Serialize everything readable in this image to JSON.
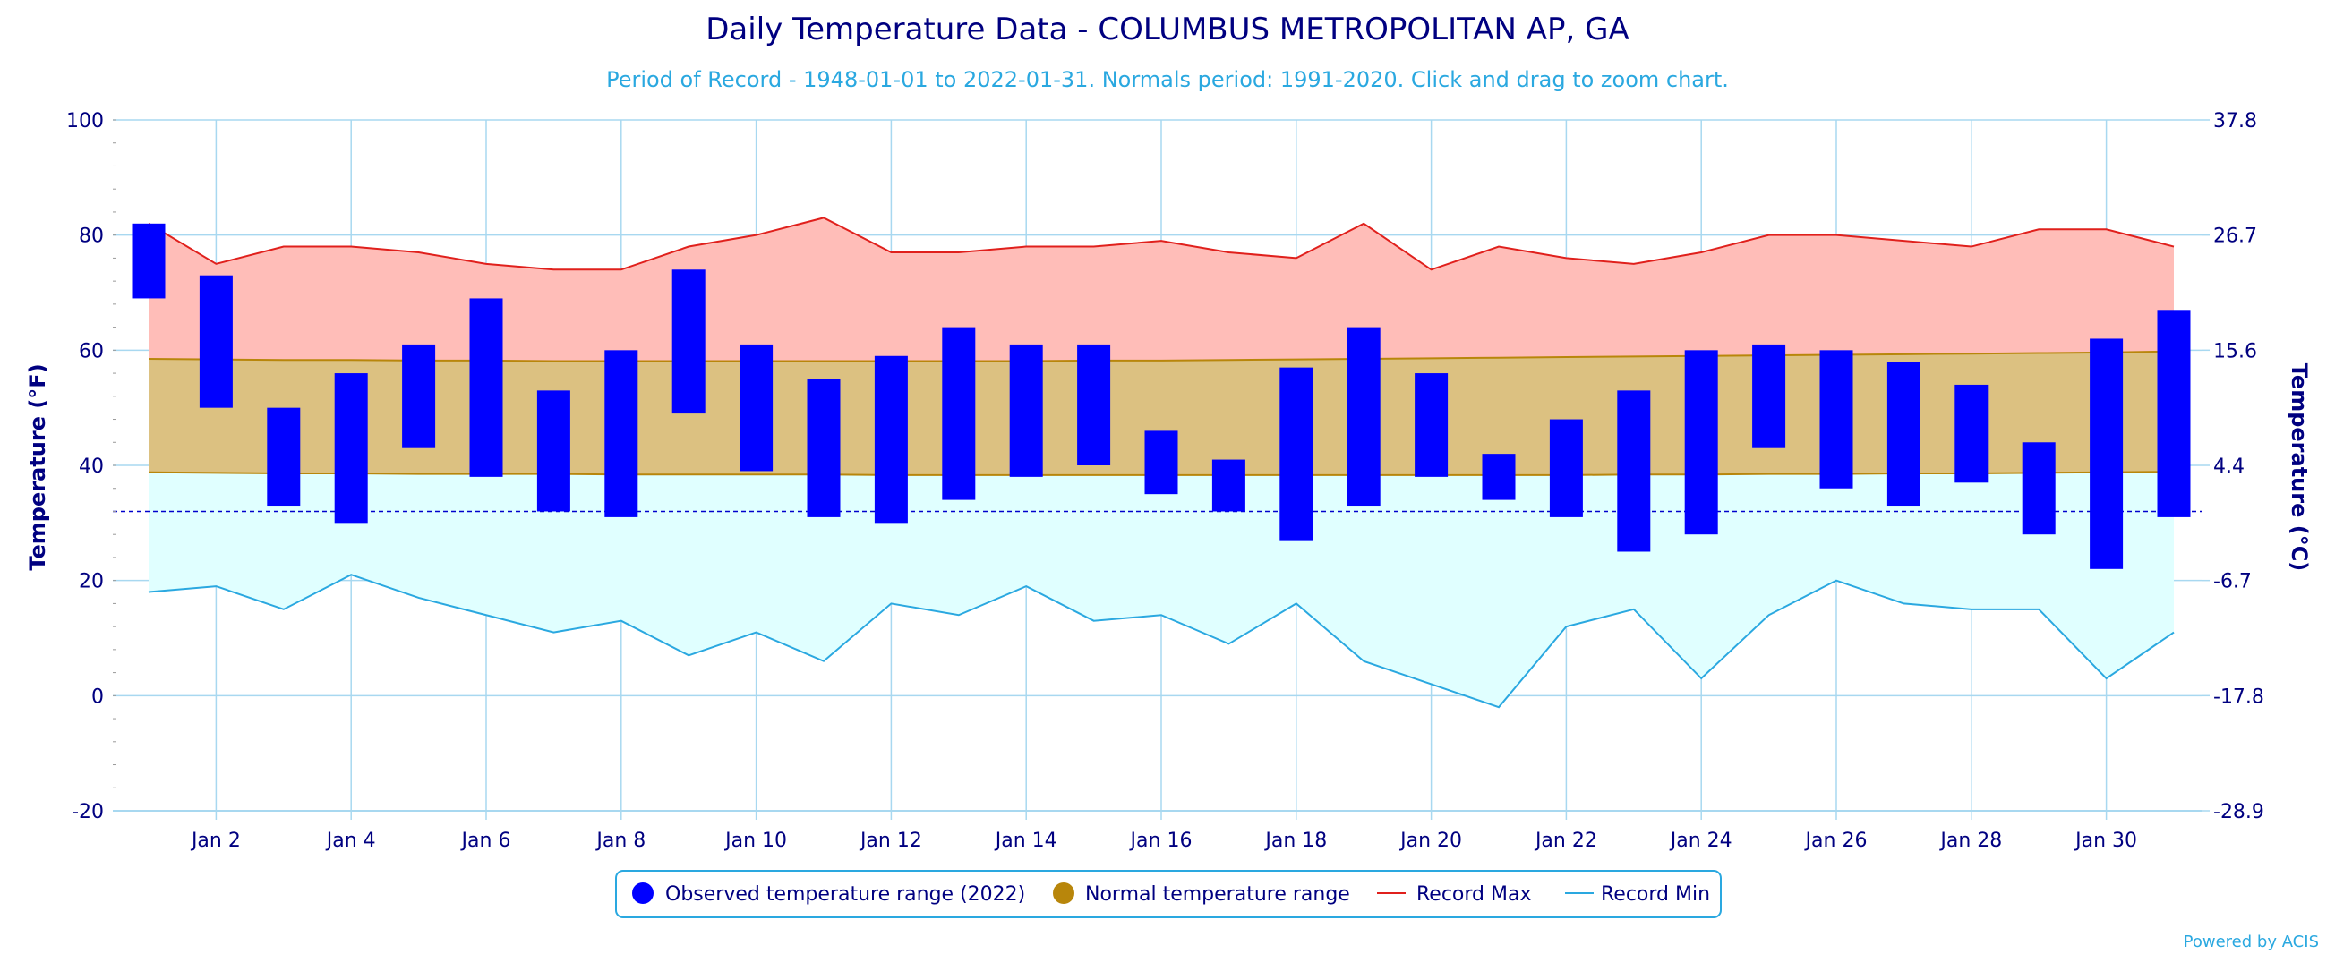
{
  "chart_data": {
    "type": "bar",
    "title": "Daily Temperature Data - COLUMBUS METROPOLITAN AP, GA",
    "subtitle": "Period of Record - 1948-01-01 to 2022-01-31. Normals period: 1991-2020. Click and drag to zoom chart.",
    "ylabel_left": "Temperature (°F)",
    "ylabel_right": "Temperature (°C)",
    "ylim": [
      -20,
      100
    ],
    "y_ticks_left": [
      "-20",
      "0",
      "20",
      "40",
      "60",
      "80",
      "100"
    ],
    "y_ticks_right": [
      "-28.9",
      "-17.8",
      "-6.7",
      "4.4",
      "15.6",
      "26.7",
      "37.8"
    ],
    "x_tick_labels": [
      "Jan 2",
      "Jan 4",
      "Jan 6",
      "Jan 8",
      "Jan 10",
      "Jan 12",
      "Jan 14",
      "Jan 16",
      "Jan 18",
      "Jan 20",
      "Jan 22",
      "Jan 24",
      "Jan 26",
      "Jan 28",
      "Jan 30"
    ],
    "days": [
      1,
      2,
      3,
      4,
      5,
      6,
      7,
      8,
      9,
      10,
      11,
      12,
      13,
      14,
      15,
      16,
      17,
      18,
      19,
      20,
      21,
      22,
      23,
      24,
      25,
      26,
      27,
      28,
      29,
      30,
      31
    ],
    "freezing_line": 32,
    "grid": true,
    "legend_position": "bottom",
    "series": [
      {
        "name": "Observed temperature range (2022)",
        "color": "#0000ff",
        "high": [
          82,
          73,
          50,
          56,
          61,
          69,
          53,
          60,
          74,
          61,
          55,
          59,
          64,
          61,
          61,
          46,
          41,
          57,
          64,
          56,
          42,
          48,
          53,
          60,
          61,
          60,
          58,
          54,
          44,
          62,
          67
        ],
        "low": [
          69,
          50,
          33,
          30,
          43,
          38,
          32,
          31,
          49,
          39,
          31,
          30,
          34,
          38,
          40,
          35,
          32,
          27,
          33,
          38,
          34,
          31,
          25,
          28,
          43,
          36,
          33,
          37,
          28,
          22,
          31
        ]
      },
      {
        "name": "Normal temperature range",
        "color": "#b8860b",
        "high": [
          58.5,
          58.4,
          58.3,
          58.3,
          58.2,
          58.2,
          58.1,
          58.1,
          58.1,
          58.1,
          58.1,
          58.1,
          58.1,
          58.1,
          58.2,
          58.2,
          58.3,
          58.4,
          58.5,
          58.6,
          58.7,
          58.8,
          58.9,
          59.0,
          59.1,
          59.2,
          59.3,
          59.4,
          59.5,
          59.6,
          59.8
        ],
        "low": [
          38.8,
          38.7,
          38.6,
          38.6,
          38.5,
          38.5,
          38.5,
          38.4,
          38.4,
          38.4,
          38.4,
          38.3,
          38.3,
          38.3,
          38.3,
          38.3,
          38.3,
          38.3,
          38.3,
          38.3,
          38.3,
          38.3,
          38.4,
          38.4,
          38.5,
          38.5,
          38.6,
          38.6,
          38.7,
          38.8,
          38.9
        ]
      },
      {
        "name": "Record Max",
        "color": "#e0201c",
        "values": [
          82,
          75,
          78,
          78,
          77,
          75,
          74,
          74,
          78,
          80,
          83,
          77,
          77,
          78,
          78,
          79,
          77,
          76,
          82,
          74,
          78,
          76,
          75,
          77,
          80,
          80,
          79,
          78,
          81,
          81,
          78
        ]
      },
      {
        "name": "Record Min",
        "color": "#2aa8e0",
        "values": [
          18,
          19,
          15,
          21,
          17,
          14,
          11,
          13,
          7,
          11,
          6,
          16,
          14,
          19,
          13,
          14,
          9,
          16,
          6,
          2,
          -2,
          12,
          15,
          3,
          14,
          20,
          16,
          15,
          15,
          3,
          11
        ]
      }
    ],
    "credit": "Powered by ACIS"
  },
  "colors": {
    "record_max_fill": "#ffbdb8",
    "normal_fill": "#dcc181",
    "record_min_fill": "#e0ffff",
    "grid": "#a8d8f0",
    "axis_text": "#000080"
  }
}
